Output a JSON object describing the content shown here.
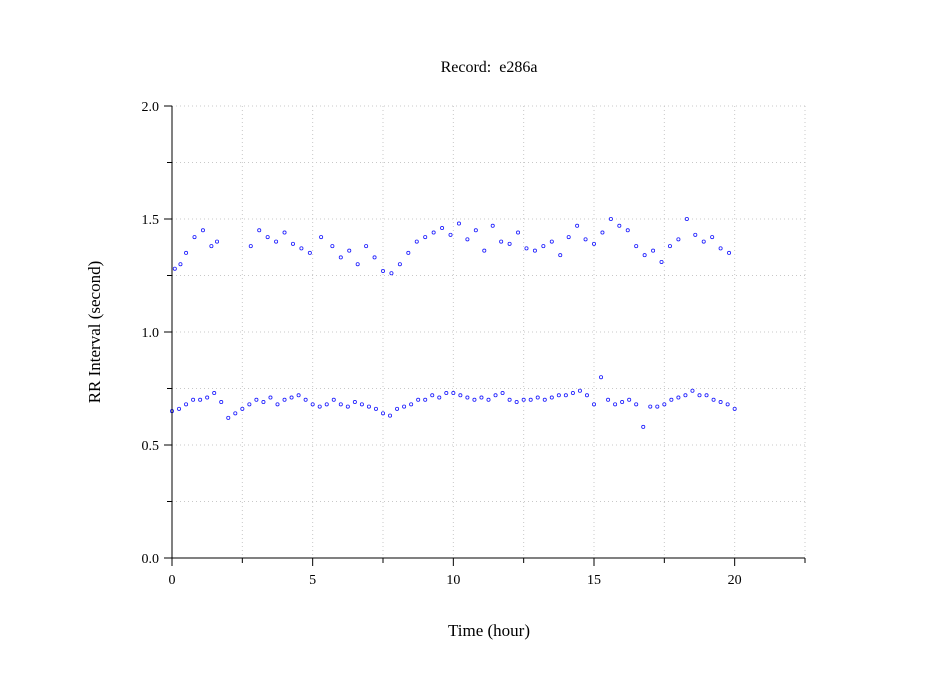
{
  "chart_data": {
    "type": "scatter",
    "title": "Record:  e286a",
    "xlabel": "Time (hour)",
    "ylabel": "RR Interval (second)",
    "xlim": [
      0,
      22.5
    ],
    "ylim": [
      0,
      2.0
    ],
    "x_ticks": [
      0,
      5,
      10,
      15,
      20
    ],
    "x_tick_labels": [
      "0",
      "5",
      "10",
      "15",
      "20"
    ],
    "x_minor_ticks": [
      2.5,
      7.5,
      12.5,
      17.5,
      22.5
    ],
    "y_ticks": [
      0,
      0.5,
      1.0,
      1.5,
      2.0
    ],
    "y_tick_labels": [
      "0.0",
      "0.5",
      "1.0",
      "1.5",
      "2.0"
    ],
    "y_minor_ticks": [
      0.25,
      0.75,
      1.25,
      1.75
    ],
    "grid": true,
    "marker_color": "#1a1aff",
    "series": [
      {
        "x": [
          0.0,
          0.25,
          0.5,
          0.75,
          1.0,
          1.25,
          1.5,
          1.75,
          2.0,
          2.25,
          2.5,
          2.75,
          3.0,
          3.25,
          3.5,
          3.75,
          4.0,
          4.25,
          4.5,
          4.75,
          5.0,
          5.25,
          5.5,
          5.75,
          6.0,
          6.25,
          6.5,
          6.75,
          7.0,
          7.25,
          7.5,
          7.75,
          8.0,
          8.25,
          8.5,
          8.75,
          9.0,
          9.25,
          9.5,
          9.75,
          10.0,
          10.25,
          10.5,
          10.75,
          11.0,
          11.25,
          11.5,
          11.75,
          12.0,
          12.25,
          12.5,
          12.75,
          13.0,
          13.25,
          13.5,
          13.75,
          14.0,
          14.25,
          14.5,
          14.75,
          15.0,
          15.25,
          15.5,
          15.75,
          16.0,
          16.25,
          16.5,
          16.75,
          17.0,
          17.25,
          17.5,
          17.75,
          18.0,
          18.25,
          18.5,
          18.75,
          19.0,
          19.25,
          19.5,
          19.75,
          20.0
        ],
        "y": [
          0.65,
          0.66,
          0.68,
          0.7,
          0.7,
          0.71,
          0.73,
          0.69,
          0.62,
          0.64,
          0.66,
          0.68,
          0.7,
          0.69,
          0.71,
          0.68,
          0.7,
          0.71,
          0.72,
          0.7,
          0.68,
          0.67,
          0.68,
          0.7,
          0.68,
          0.67,
          0.69,
          0.68,
          0.67,
          0.66,
          0.64,
          0.63,
          0.66,
          0.67,
          0.68,
          0.7,
          0.7,
          0.72,
          0.71,
          0.73,
          0.73,
          0.72,
          0.71,
          0.7,
          0.71,
          0.7,
          0.72,
          0.73,
          0.7,
          0.69,
          0.7,
          0.7,
          0.71,
          0.7,
          0.71,
          0.72,
          0.72,
          0.73,
          0.74,
          0.72,
          0.68,
          0.8,
          0.7,
          0.68,
          0.69,
          0.7,
          0.68,
          0.58,
          0.67,
          0.67,
          0.68,
          0.7,
          0.71,
          0.72,
          0.74,
          0.72,
          0.72,
          0.7,
          0.69,
          0.68,
          0.66
        ]
      },
      {
        "x": [
          0.1,
          0.3,
          0.5,
          0.8,
          1.1,
          1.4,
          1.6,
          2.8,
          3.1,
          3.4,
          3.7,
          4.0,
          4.3,
          4.6,
          4.9,
          5.3,
          5.7,
          6.0,
          6.3,
          6.6,
          6.9,
          7.2,
          7.5,
          7.8,
          8.1,
          8.4,
          8.7,
          9.0,
          9.3,
          9.6,
          9.9,
          10.2,
          10.5,
          10.8,
          11.1,
          11.4,
          11.7,
          12.0,
          12.3,
          12.6,
          12.9,
          13.2,
          13.5,
          13.8,
          14.1,
          14.4,
          14.7,
          15.0,
          15.3,
          15.6,
          15.9,
          16.2,
          16.5,
          16.8,
          17.1,
          17.4,
          17.7,
          18.0,
          18.3,
          18.6,
          18.9,
          19.2,
          19.5,
          19.8
        ],
        "y": [
          1.28,
          1.3,
          1.35,
          1.42,
          1.45,
          1.38,
          1.4,
          1.38,
          1.45,
          1.42,
          1.4,
          1.44,
          1.39,
          1.37,
          1.35,
          1.42,
          1.38,
          1.33,
          1.36,
          1.3,
          1.38,
          1.33,
          1.27,
          1.26,
          1.3,
          1.35,
          1.4,
          1.42,
          1.44,
          1.46,
          1.43,
          1.48,
          1.41,
          1.45,
          1.36,
          1.47,
          1.4,
          1.39,
          1.44,
          1.37,
          1.36,
          1.38,
          1.4,
          1.34,
          1.42,
          1.47,
          1.41,
          1.39,
          1.44,
          1.5,
          1.47,
          1.45,
          1.38,
          1.34,
          1.36,
          1.31,
          1.38,
          1.41,
          1.5,
          1.43,
          1.4,
          1.42,
          1.37,
          1.35
        ]
      }
    ],
    "annotations": []
  }
}
